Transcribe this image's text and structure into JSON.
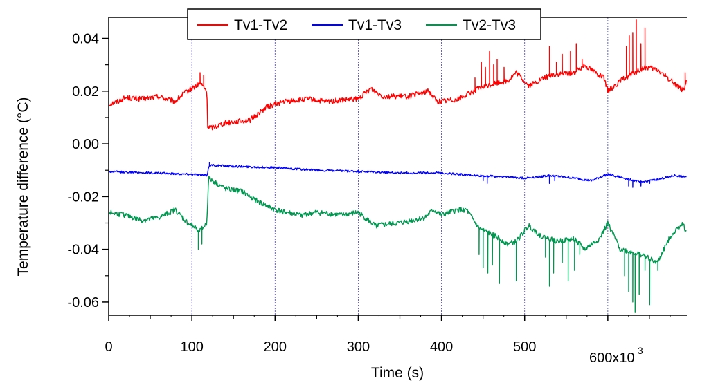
{
  "chart_data": {
    "type": "line",
    "xlabel": "Time (s)",
    "ylabel": "Temperature difference (°C)",
    "x_axis": {
      "range": [
        0,
        695000
      ],
      "ticks": [
        {
          "value": 0,
          "label": "0"
        },
        {
          "value": 100000,
          "label": "100"
        },
        {
          "value": 200000,
          "label": "200"
        },
        {
          "value": 300000,
          "label": "300"
        },
        {
          "value": 400000,
          "label": "400"
        },
        {
          "value": 500000,
          "label": "500"
        },
        {
          "value": 600000,
          "label": "600x10"
        }
      ],
      "exponent_label": "3",
      "minor_step": 50000,
      "gridlines": [
        100000,
        200000,
        300000,
        400000,
        500000,
        600000
      ]
    },
    "y_axis": {
      "range": [
        -0.065,
        0.048
      ],
      "ticks": [
        {
          "value": 0.04,
          "label": "0.04"
        },
        {
          "value": 0.02,
          "label": "0.02"
        },
        {
          "value": 0.0,
          "label": "0.00"
        },
        {
          "value": -0.02,
          "label": "-0.02"
        },
        {
          "value": -0.04,
          "label": "-0.04"
        },
        {
          "value": -0.06,
          "label": "-0.06"
        }
      ],
      "minor_step": 0.01
    },
    "grid": "dotted vertical lines at major x ticks",
    "legend": {
      "placement": "top-center"
    },
    "series": [
      {
        "name": "Tv1-Tv2",
        "color": "#ff0000",
        "noise": 0.001,
        "points": [
          [
            0,
            0.015
          ],
          [
            10000,
            0.016
          ],
          [
            20000,
            0.0175
          ],
          [
            40000,
            0.017
          ],
          [
            60000,
            0.018
          ],
          [
            80000,
            0.016
          ],
          [
            90000,
            0.019
          ],
          [
            100000,
            0.021
          ],
          [
            110000,
            0.023
          ],
          [
            118000,
            0.02
          ],
          [
            119000,
            0.007
          ],
          [
            122000,
            0.006
          ],
          [
            140000,
            0.008
          ],
          [
            170000,
            0.009
          ],
          [
            190000,
            0.014
          ],
          [
            210000,
            0.016
          ],
          [
            240000,
            0.017
          ],
          [
            260000,
            0.016
          ],
          [
            280000,
            0.0165
          ],
          [
            300000,
            0.017
          ],
          [
            315000,
            0.021
          ],
          [
            330000,
            0.018
          ],
          [
            360000,
            0.018
          ],
          [
            385000,
            0.02
          ],
          [
            395000,
            0.016
          ],
          [
            420000,
            0.017
          ],
          [
            445000,
            0.021
          ],
          [
            465000,
            0.023
          ],
          [
            480000,
            0.024
          ],
          [
            490000,
            0.027
          ],
          [
            505000,
            0.022
          ],
          [
            530000,
            0.026
          ],
          [
            560000,
            0.027
          ],
          [
            572000,
            0.03
          ],
          [
            595000,
            0.025
          ],
          [
            600000,
            0.02
          ],
          [
            620000,
            0.025
          ],
          [
            645000,
            0.029
          ],
          [
            660000,
            0.028
          ],
          [
            680000,
            0.023
          ],
          [
            692000,
            0.02
          ],
          [
            695000,
            0.024
          ]
        ],
        "spikes": [
          [
            110000,
            0.027
          ],
          [
            114000,
            0.026
          ],
          [
            440000,
            0.025
          ],
          [
            448000,
            0.031
          ],
          [
            453000,
            0.029
          ],
          [
            458000,
            0.035
          ],
          [
            463000,
            0.03
          ],
          [
            467000,
            0.032
          ],
          [
            475000,
            0.029
          ],
          [
            530000,
            0.037
          ],
          [
            538000,
            0.031
          ],
          [
            545000,
            0.034
          ],
          [
            555000,
            0.035
          ],
          [
            562000,
            0.038
          ],
          [
            569000,
            0.032
          ],
          [
            622000,
            0.037
          ],
          [
            626000,
            0.041
          ],
          [
            630000,
            0.042
          ],
          [
            634000,
            0.047
          ],
          [
            640000,
            0.038
          ],
          [
            645000,
            0.044
          ],
          [
            693000,
            0.027
          ]
        ]
      },
      {
        "name": "Tv1-Tv3",
        "color": "#0000ff",
        "noise": 0.0004,
        "points": [
          [
            0,
            -0.0105
          ],
          [
            50000,
            -0.011
          ],
          [
            100000,
            -0.0115
          ],
          [
            118000,
            -0.012
          ],
          [
            121000,
            -0.008
          ],
          [
            150000,
            -0.0085
          ],
          [
            200000,
            -0.009
          ],
          [
            250000,
            -0.01
          ],
          [
            300000,
            -0.0105
          ],
          [
            350000,
            -0.011
          ],
          [
            400000,
            -0.011
          ],
          [
            440000,
            -0.012
          ],
          [
            480000,
            -0.0125
          ],
          [
            500000,
            -0.013
          ],
          [
            530000,
            -0.012
          ],
          [
            560000,
            -0.013
          ],
          [
            580000,
            -0.014
          ],
          [
            600000,
            -0.0115
          ],
          [
            620000,
            -0.013
          ],
          [
            640000,
            -0.0145
          ],
          [
            660000,
            -0.0135
          ],
          [
            680000,
            -0.012
          ],
          [
            695000,
            -0.0125
          ]
        ],
        "spikes": [
          [
            121000,
            -0.0072
          ],
          [
            450000,
            -0.014
          ],
          [
            455000,
            -0.015
          ],
          [
            530000,
            -0.015
          ],
          [
            536000,
            -0.014
          ],
          [
            625000,
            -0.016
          ],
          [
            630000,
            -0.0165
          ],
          [
            640000,
            -0.016
          ],
          [
            650000,
            -0.015
          ]
        ]
      },
      {
        "name": "Tv2-Tv3",
        "color": "#009650",
        "noise": 0.001,
        "points": [
          [
            0,
            -0.026
          ],
          [
            20000,
            -0.027
          ],
          [
            40000,
            -0.029
          ],
          [
            60000,
            -0.028
          ],
          [
            80000,
            -0.025
          ],
          [
            95000,
            -0.03
          ],
          [
            110000,
            -0.033
          ],
          [
            118000,
            -0.03
          ],
          [
            120000,
            -0.013
          ],
          [
            140000,
            -0.017
          ],
          [
            160000,
            -0.018
          ],
          [
            180000,
            -0.022
          ],
          [
            200000,
            -0.025
          ],
          [
            230000,
            -0.027
          ],
          [
            250000,
            -0.026
          ],
          [
            280000,
            -0.027
          ],
          [
            300000,
            -0.026
          ],
          [
            320000,
            -0.031
          ],
          [
            350000,
            -0.03
          ],
          [
            380000,
            -0.028
          ],
          [
            390000,
            -0.025
          ],
          [
            400000,
            -0.027
          ],
          [
            420000,
            -0.025
          ],
          [
            430000,
            -0.025
          ],
          [
            445000,
            -0.032
          ],
          [
            465000,
            -0.035
          ],
          [
            480000,
            -0.038
          ],
          [
            490000,
            -0.037
          ],
          [
            505000,
            -0.031
          ],
          [
            520000,
            -0.035
          ],
          [
            540000,
            -0.037
          ],
          [
            560000,
            -0.036
          ],
          [
            572000,
            -0.04
          ],
          [
            590000,
            -0.036
          ],
          [
            600000,
            -0.03
          ],
          [
            615000,
            -0.04
          ],
          [
            640000,
            -0.042
          ],
          [
            660000,
            -0.045
          ],
          [
            675000,
            -0.035
          ],
          [
            690000,
            -0.03
          ],
          [
            695000,
            -0.034
          ]
        ],
        "spikes": [
          [
            108000,
            -0.04
          ],
          [
            112000,
            -0.038
          ],
          [
            445000,
            -0.042
          ],
          [
            450000,
            -0.047
          ],
          [
            456000,
            -0.049
          ],
          [
            461000,
            -0.046
          ],
          [
            470000,
            -0.053
          ],
          [
            490000,
            -0.052
          ],
          [
            525000,
            -0.043
          ],
          [
            530000,
            -0.054
          ],
          [
            535000,
            -0.049
          ],
          [
            545000,
            -0.045
          ],
          [
            552000,
            -0.052
          ],
          [
            560000,
            -0.048
          ],
          [
            566000,
            -0.042
          ],
          [
            620000,
            -0.05
          ],
          [
            625000,
            -0.056
          ],
          [
            630000,
            -0.06
          ],
          [
            633000,
            -0.064
          ],
          [
            638000,
            -0.057
          ],
          [
            645000,
            -0.048
          ],
          [
            650000,
            -0.061
          ],
          [
            660000,
            -0.048
          ]
        ]
      }
    ]
  }
}
